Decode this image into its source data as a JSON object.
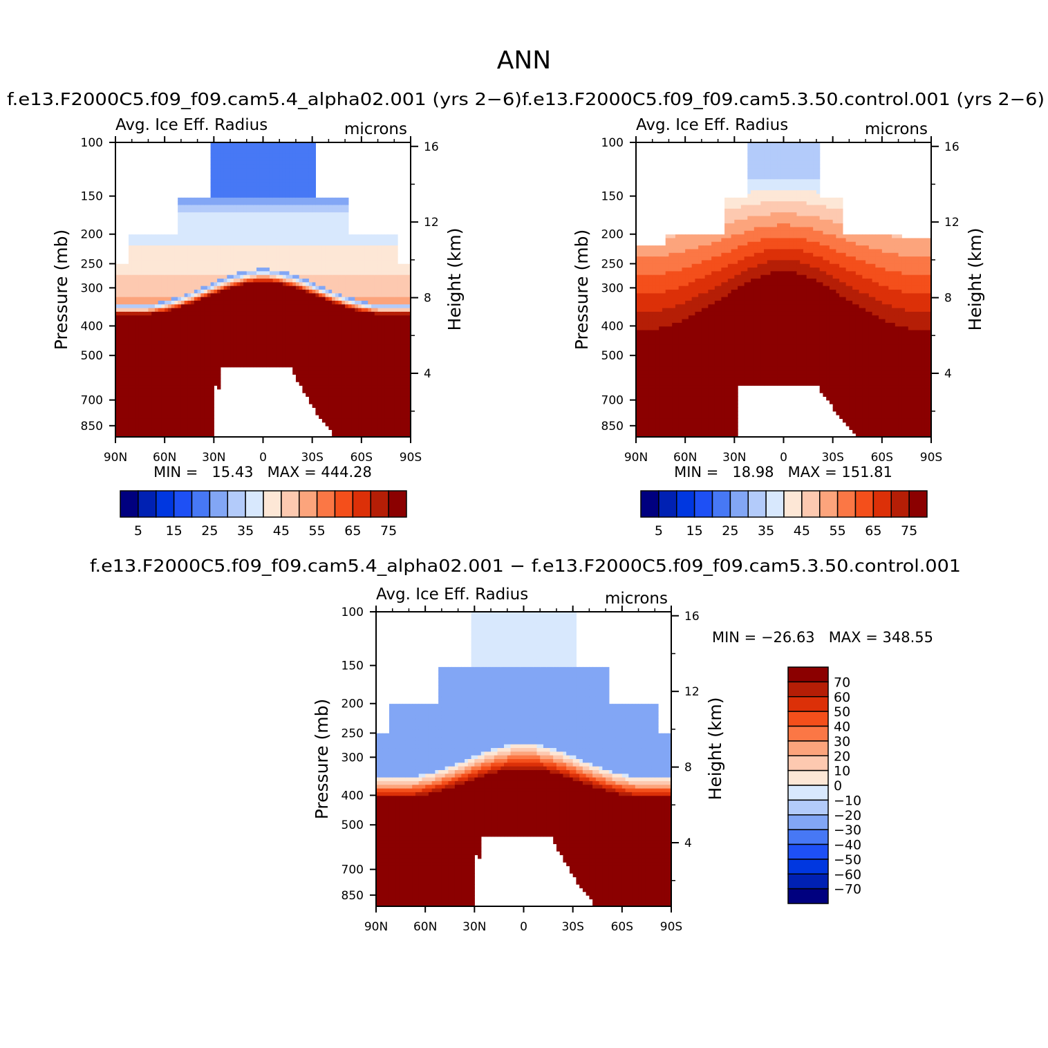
{
  "figure": {
    "title": "ANN",
    "panel_titles": [
      "f.e13.F2000C5.f09_f09.cam5.4_alpha02.001 (yrs 2−6)",
      "f.e13.F2000C5.f09_f09.cam5.3.50.control.001 (yrs 2−6)",
      "f.e13.F2000C5.f09_f09.cam5.4_alpha02.001 − f.e13.F2000C5.f09_f09.cam5.3.50.control.001"
    ]
  },
  "chart_data": [
    {
      "type": "heatmap",
      "variable": "Avg. Ice Eff. Radius",
      "units": "microns",
      "ylabel": "Pressure (mb)",
      "ylabel_right": "Height (km)",
      "x_ticks": [
        "90N",
        "60N",
        "30N",
        "0",
        "30S",
        "60S",
        "90S"
      ],
      "y_ticks": [
        100,
        150,
        200,
        250,
        300,
        400,
        500,
        700,
        850
      ],
      "y_ticks_right": [
        16,
        12,
        8,
        4
      ],
      "y_scale": "log",
      "stats": "MIN =   15.43   MAX = 444.28",
      "min": 15.43,
      "max": 444.28,
      "levels": [
        5,
        10,
        15,
        20,
        25,
        30,
        35,
        40,
        45,
        50,
        55,
        60,
        65,
        70,
        75
      ],
      "colorbar_labels": [
        "5",
        "15",
        "25",
        "35",
        "45",
        "55",
        "65",
        "75"
      ],
      "colors": [
        "#00007f",
        "#0021b3",
        "#0037e0",
        "#1e50f5",
        "#4778f5",
        "#82a6f5",
        "#b3cbfa",
        "#d8e8fd",
        "#fde7d6",
        "#fdc9b0",
        "#fca47c",
        "#fb7745",
        "#f44f1b",
        "#dc3008",
        "#b51e06",
        "#8b0000"
      ],
      "region": "ice cloud layer 100–500 mb; values > 75 below about 300 mb, small (≈ 20–30) near 100 mb in the tropics"
    },
    {
      "type": "heatmap",
      "variable": "Avg. Ice Eff. Radius",
      "units": "microns",
      "ylabel": "Pressure (mb)",
      "ylabel_right": "Height (km)",
      "x_ticks": [
        "90N",
        "60N",
        "30N",
        "0",
        "30S",
        "60S",
        "90S"
      ],
      "y_ticks": [
        100,
        150,
        200,
        250,
        300,
        400,
        500,
        700,
        850
      ],
      "y_ticks_right": [
        16,
        12,
        8,
        4
      ],
      "y_scale": "log",
      "stats": "MIN =   18.98   MAX = 151.81",
      "min": 18.98,
      "max": 151.81,
      "levels": [
        5,
        10,
        15,
        20,
        25,
        30,
        35,
        40,
        45,
        50,
        55,
        60,
        65,
        70,
        75
      ],
      "colorbar_labels": [
        "5",
        "15",
        "25",
        "35",
        "45",
        "55",
        "65",
        "75"
      ],
      "colors": [
        "#00007f",
        "#0021b3",
        "#0037e0",
        "#1e50f5",
        "#4778f5",
        "#82a6f5",
        "#b3cbfa",
        "#d8e8fd",
        "#fde7d6",
        "#fdc9b0",
        "#fca47c",
        "#fb7745",
        "#f44f1b",
        "#dc3008",
        "#b51e06",
        "#8b0000"
      ],
      "region": "gradual increase from ≈ 30 near 100 mb to > 75 below about 300 mb"
    },
    {
      "type": "heatmap",
      "variable": "Avg. Ice Eff. Radius",
      "units": "microns",
      "ylabel": "Pressure (mb)",
      "ylabel_right": "Height (km)",
      "x_ticks": [
        "90N",
        "60N",
        "30N",
        "0",
        "30S",
        "60S",
        "90S"
      ],
      "y_ticks": [
        100,
        150,
        200,
        250,
        300,
        400,
        500,
        700,
        850
      ],
      "y_ticks_right": [
        16,
        12,
        8,
        4
      ],
      "y_scale": "log",
      "stats": "MIN = −26.63   MAX = 348.55",
      "min": -26.63,
      "max": 348.55,
      "levels": [
        -70,
        -60,
        -50,
        -40,
        -30,
        -20,
        -10,
        0,
        10,
        20,
        30,
        40,
        50,
        60,
        70
      ],
      "colorbar_labels": [
        "70",
        "60",
        "50",
        "40",
        "30",
        "20",
        "10",
        "0",
        "−10",
        "−20",
        "−30",
        "−40",
        "−50",
        "−60",
        "−70"
      ],
      "colors": [
        "#00007f",
        "#0021b3",
        "#0037e0",
        "#1e50f5",
        "#4778f5",
        "#82a6f5",
        "#b3cbfa",
        "#d8e8fd",
        "#fde7d6",
        "#fdc9b0",
        "#fca47c",
        "#fb7745",
        "#f44f1b",
        "#dc3008",
        "#b51e06",
        "#8b0000"
      ],
      "region": "negative (− 10 to − 30) differences above about 250 mb, positive > 70 below about 300 mb"
    }
  ]
}
